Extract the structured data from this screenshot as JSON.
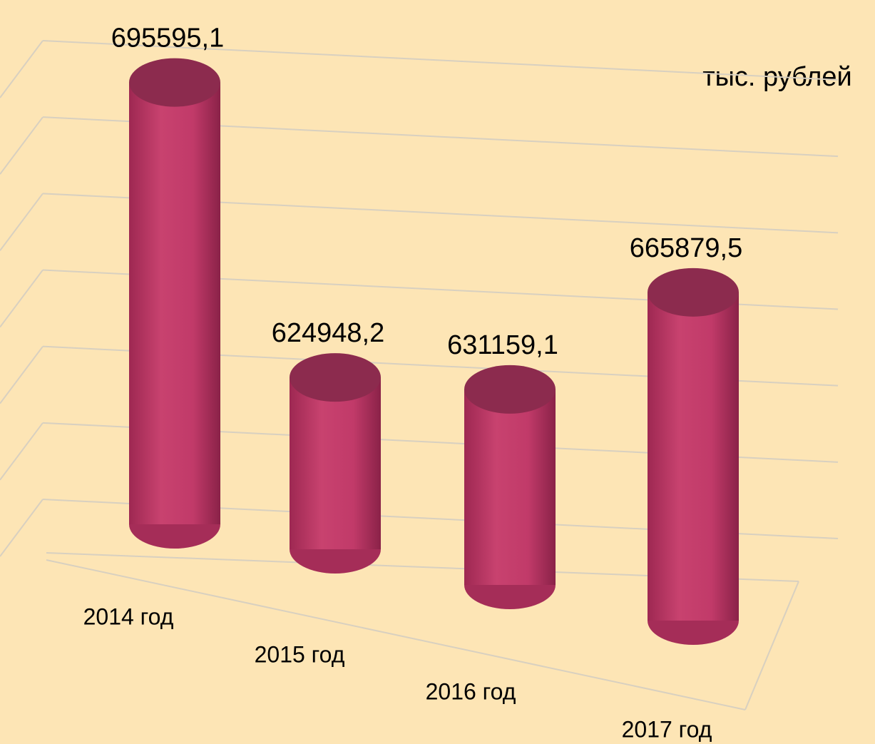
{
  "chart_data": {
    "type": "bar3d",
    "unit_label": "тыс. рублей",
    "categories": [
      "2014 год",
      "2015 год",
      "2016 год",
      "2017 год"
    ],
    "values": [
      695595.1,
      624948.2,
      631159.1,
      665879.5
    ],
    "value_labels": [
      "695595,1",
      "624948,2",
      "631159,1",
      "665879,5"
    ],
    "color": "#c23c6c",
    "ylim": [
      580000,
      700000
    ],
    "yticks": [
      580000,
      600000,
      620000,
      640000,
      660000,
      680000,
      700000
    ],
    "grid": true
  }
}
